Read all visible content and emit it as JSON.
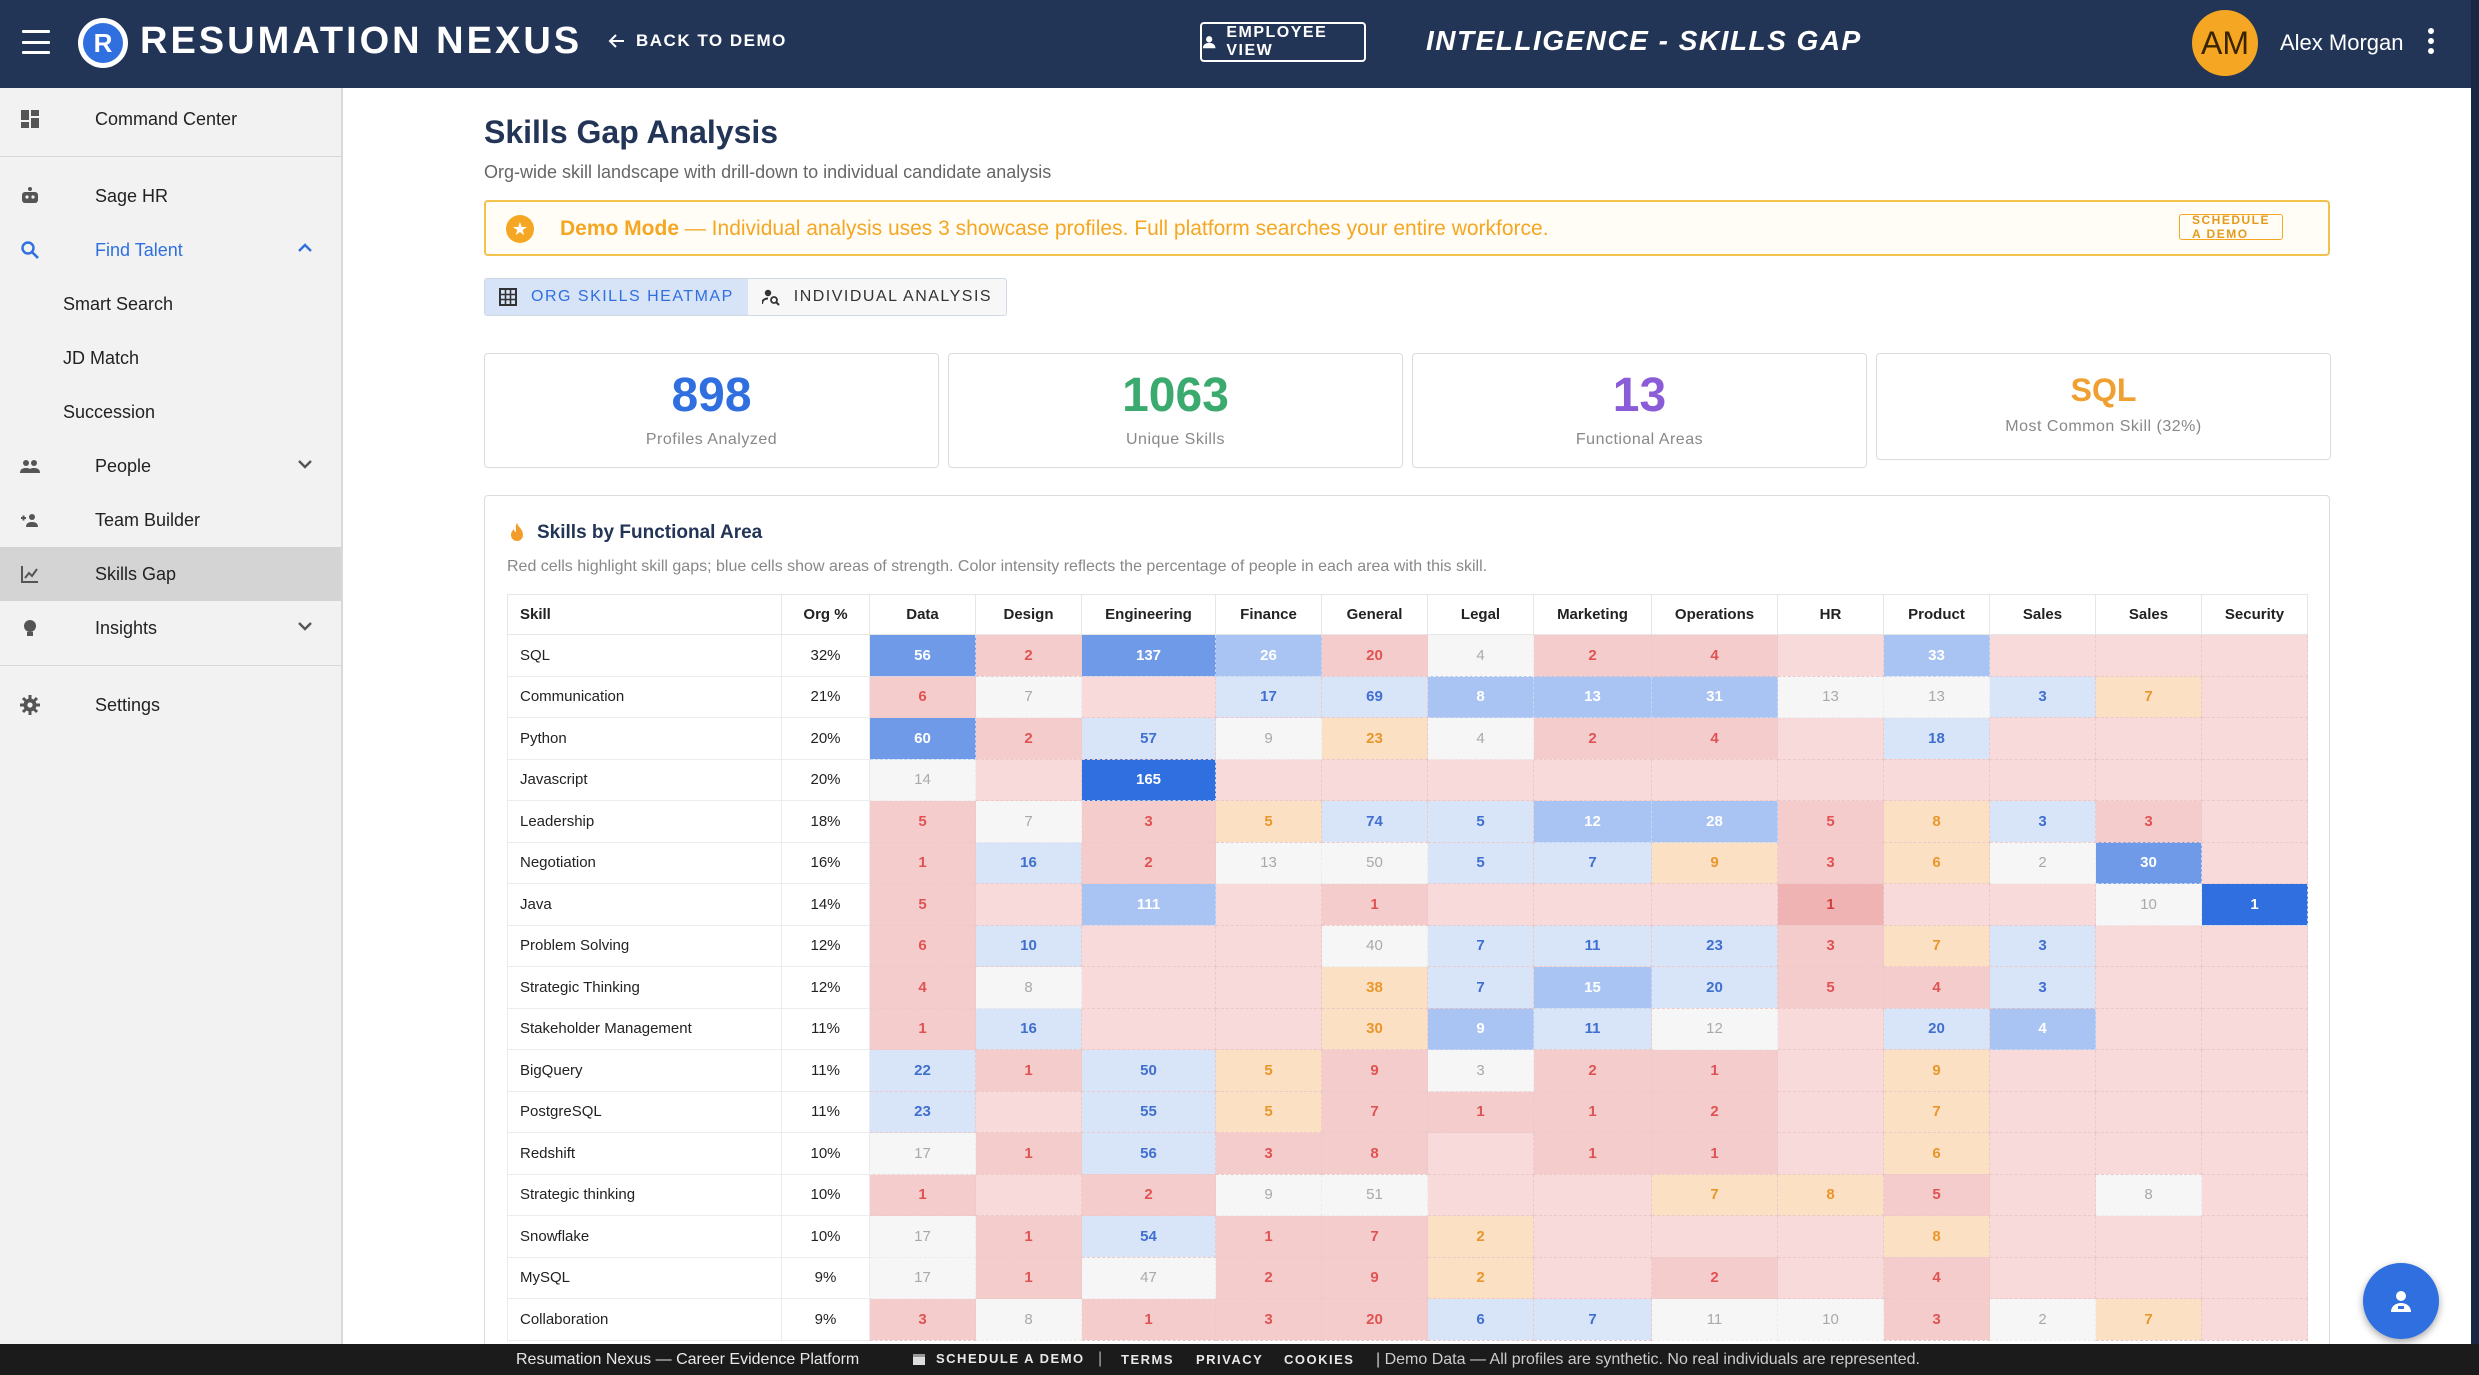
{
  "header": {
    "brand": "RESUMATION NEXUS",
    "logo_letter": "R",
    "back_label": "BACK TO DEMO",
    "employee_view_label": "EMPLOYEE VIEW",
    "page_title": "INTELLIGENCE - SKILLS GAP",
    "avatar_initials": "AM",
    "user_name": "Alex Morgan"
  },
  "sidebar": {
    "command_center": "Command Center",
    "sage_hr": "Sage HR",
    "find_talent": "Find Talent",
    "smart_search": "Smart Search",
    "jd_match": "JD Match",
    "succession": "Succession",
    "people": "People",
    "team_builder": "Team Builder",
    "skills_gap": "Skills Gap",
    "insights": "Insights",
    "settings": "Settings"
  },
  "main": {
    "title": "Skills Gap Analysis",
    "subtitle": "Org-wide skill landscape with drill-down to individual candidate analysis",
    "demo_bold": "Demo Mode",
    "demo_text": " — Individual analysis uses 3 showcase profiles. Full platform searches your entire workforce.",
    "demo_button": "SCHEDULE A DEMO",
    "tab_heatmap": "ORG SKILLS HEATMAP",
    "tab_individual": "INDIVIDUAL ANALYSIS",
    "stats": {
      "profiles_value": "898",
      "profiles_label": "Profiles Analyzed",
      "skills_value": "1063",
      "skills_label": "Unique Skills",
      "areas_value": "13",
      "areas_label": "Functional Areas",
      "common_value": "SQL",
      "common_label": "Most Common Skill (32%)"
    },
    "panel_title": "Skills by Functional Area",
    "panel_desc": "Red cells highlight skill gaps; blue cells show areas of strength. Color intensity reflects the percentage of people in each area with this skill."
  },
  "heatmap": {
    "headers": [
      "Skill",
      "Org %",
      "Data",
      "Design",
      "Engineering",
      "Finance",
      "General",
      "Legal",
      "Marketing",
      "Operations",
      "HR",
      "Product",
      "Sales",
      "Sales",
      "Security"
    ],
    "rows": [
      {
        "skill": "SQL",
        "pct": "32%",
        "cells": [
          "56",
          "2",
          "137",
          "26",
          "20",
          "4",
          "2",
          "4",
          "",
          "33",
          "",
          "",
          ""
        ],
        "levels": [
          "b3",
          "r2",
          "b3",
          "b2",
          "r2",
          "n",
          "r2",
          "r2",
          "r1",
          "b2",
          "r1",
          "r1",
          "r1"
        ]
      },
      {
        "skill": "Communication",
        "pct": "21%",
        "cells": [
          "6",
          "7",
          "",
          "17",
          "69",
          "8",
          "13",
          "31",
          "13",
          "13",
          "3",
          "7",
          ""
        ],
        "levels": [
          "r2",
          "n",
          "r1",
          "b1",
          "b1",
          "b2",
          "b2",
          "b2",
          "n",
          "n",
          "b1",
          "o",
          "r1"
        ]
      },
      {
        "skill": "Python",
        "pct": "20%",
        "cells": [
          "60",
          "2",
          "57",
          "9",
          "23",
          "4",
          "2",
          "4",
          "",
          "18",
          "",
          "",
          ""
        ],
        "levels": [
          "b3",
          "r2",
          "b1",
          "n",
          "o",
          "n",
          "r2",
          "r2",
          "r1",
          "b1",
          "r1",
          "r1",
          "r1"
        ]
      },
      {
        "skill": "Javascript",
        "pct": "20%",
        "cells": [
          "14",
          "",
          "165",
          "",
          "",
          "",
          "",
          "",
          "",
          "",
          "",
          "",
          ""
        ],
        "levels": [
          "n",
          "r1",
          "b4",
          "r1",
          "r1",
          "r1",
          "r1",
          "r1",
          "r1",
          "r1",
          "r1",
          "r1",
          "r1"
        ]
      },
      {
        "skill": "Leadership",
        "pct": "18%",
        "cells": [
          "5",
          "7",
          "3",
          "5",
          "74",
          "5",
          "12",
          "28",
          "5",
          "8",
          "3",
          "3",
          ""
        ],
        "levels": [
          "r2",
          "n",
          "r2",
          "o",
          "b1",
          "b1",
          "b2",
          "b2",
          "r2",
          "o",
          "b1",
          "r2",
          "r1"
        ]
      },
      {
        "skill": "Negotiation",
        "pct": "16%",
        "cells": [
          "1",
          "16",
          "2",
          "13",
          "50",
          "5",
          "7",
          "9",
          "3",
          "6",
          "2",
          "30",
          ""
        ],
        "levels": [
          "r2",
          "b1",
          "r2",
          "n",
          "n",
          "b1",
          "b1",
          "o",
          "r2",
          "o",
          "n",
          "b3",
          "r1"
        ]
      },
      {
        "skill": "Java",
        "pct": "14%",
        "cells": [
          "5",
          "",
          "111",
          "",
          "1",
          "",
          "",
          "",
          "1",
          "",
          "",
          "10",
          "1"
        ],
        "levels": [
          "r2",
          "r1",
          "b2",
          "r1",
          "r2",
          "r1",
          "r1",
          "r1",
          "r3",
          "r1",
          "r1",
          "n",
          "b4"
        ]
      },
      {
        "skill": "Problem Solving",
        "pct": "12%",
        "cells": [
          "6",
          "10",
          "",
          "",
          "40",
          "7",
          "11",
          "23",
          "3",
          "7",
          "3",
          "",
          ""
        ],
        "levels": [
          "r2",
          "b1",
          "r1",
          "r1",
          "n",
          "b1",
          "b1",
          "b1",
          "r2",
          "o",
          "b1",
          "r1",
          "r1"
        ]
      },
      {
        "skill": "Strategic Thinking",
        "pct": "12%",
        "cells": [
          "4",
          "8",
          "",
          "",
          "38",
          "7",
          "15",
          "20",
          "5",
          "4",
          "3",
          "",
          ""
        ],
        "levels": [
          "r2",
          "n",
          "r1",
          "r1",
          "o",
          "b1",
          "b2",
          "b1",
          "r2",
          "r2",
          "b1",
          "r1",
          "r1"
        ]
      },
      {
        "skill": "Stakeholder Management",
        "pct": "11%",
        "cells": [
          "1",
          "16",
          "",
          "",
          "30",
          "9",
          "11",
          "12",
          "",
          "20",
          "4",
          "",
          ""
        ],
        "levels": [
          "r2",
          "b1",
          "r1",
          "r1",
          "o",
          "b2",
          "b1",
          "n",
          "r1",
          "b1",
          "b2",
          "r1",
          "r1"
        ]
      },
      {
        "skill": "BigQuery",
        "pct": "11%",
        "cells": [
          "22",
          "1",
          "50",
          "5",
          "9",
          "3",
          "2",
          "1",
          "",
          "9",
          "",
          "",
          ""
        ],
        "levels": [
          "b1",
          "r2",
          "b1",
          "o",
          "r2",
          "n",
          "r2",
          "r2",
          "r1",
          "o",
          "r1",
          "r1",
          "r1"
        ]
      },
      {
        "skill": "PostgreSQL",
        "pct": "11%",
        "cells": [
          "23",
          "",
          "55",
          "5",
          "7",
          "1",
          "1",
          "2",
          "",
          "7",
          "",
          "",
          ""
        ],
        "levels": [
          "b1",
          "r1",
          "b1",
          "o",
          "r2",
          "r2",
          "r2",
          "r2",
          "r1",
          "o",
          "r1",
          "r1",
          "r1"
        ]
      },
      {
        "skill": "Redshift",
        "pct": "10%",
        "cells": [
          "17",
          "1",
          "56",
          "3",
          "8",
          "",
          "1",
          "1",
          "",
          "6",
          "",
          "",
          ""
        ],
        "levels": [
          "n",
          "r2",
          "b1",
          "r2",
          "r2",
          "r1",
          "r2",
          "r2",
          "r1",
          "o",
          "r1",
          "r1",
          "r1"
        ]
      },
      {
        "skill": "Strategic thinking",
        "pct": "10%",
        "cells": [
          "1",
          "",
          "2",
          "9",
          "51",
          "",
          "",
          "7",
          "8",
          "5",
          "",
          "8",
          ""
        ],
        "levels": [
          "r2",
          "r1",
          "r2",
          "n",
          "n",
          "r1",
          "r1",
          "o",
          "o",
          "r2",
          "r1",
          "n",
          "r1"
        ]
      },
      {
        "skill": "Snowflake",
        "pct": "10%",
        "cells": [
          "17",
          "1",
          "54",
          "1",
          "7",
          "2",
          "",
          "",
          "",
          "8",
          "",
          "",
          ""
        ],
        "levels": [
          "n",
          "r2",
          "b1",
          "r2",
          "r2",
          "o",
          "r1",
          "r1",
          "r1",
          "o",
          "r1",
          "r1",
          "r1"
        ]
      },
      {
        "skill": "MySQL",
        "pct": "9%",
        "cells": [
          "17",
          "1",
          "47",
          "2",
          "9",
          "2",
          "",
          "2",
          "",
          "4",
          "",
          "",
          ""
        ],
        "levels": [
          "n",
          "r2",
          "n",
          "r2",
          "r2",
          "o",
          "r1",
          "r2",
          "r1",
          "r2",
          "r1",
          "r1",
          "r1"
        ]
      },
      {
        "skill": "Collaboration",
        "pct": "9%",
        "cells": [
          "3",
          "8",
          "1",
          "3",
          "20",
          "6",
          "7",
          "11",
          "10",
          "3",
          "2",
          "7",
          ""
        ],
        "levels": [
          "r2",
          "n",
          "r2",
          "r2",
          "r2",
          "b1",
          "b1",
          "n",
          "n",
          "r2",
          "n",
          "o",
          "r1"
        ]
      }
    ]
  },
  "footer": {
    "platform": "Resumation Nexus — Career Evidence Platform",
    "schedule": "SCHEDULE A DEMO",
    "terms": "TERMS",
    "privacy": "PRIVACY",
    "cookies": "COOKIES",
    "note": "| Demo Data — All profiles are synthetic. No real individuals are represented."
  },
  "colors": {
    "header_bg": "#233556",
    "accent_blue": "#2f6fe0",
    "accent_orange": "#f5a623",
    "stat_profiles": "#2f6fe0",
    "stat_skills": "#3aaa6e",
    "stat_areas": "#8a5cd8",
    "stat_common": "#f0a030"
  }
}
